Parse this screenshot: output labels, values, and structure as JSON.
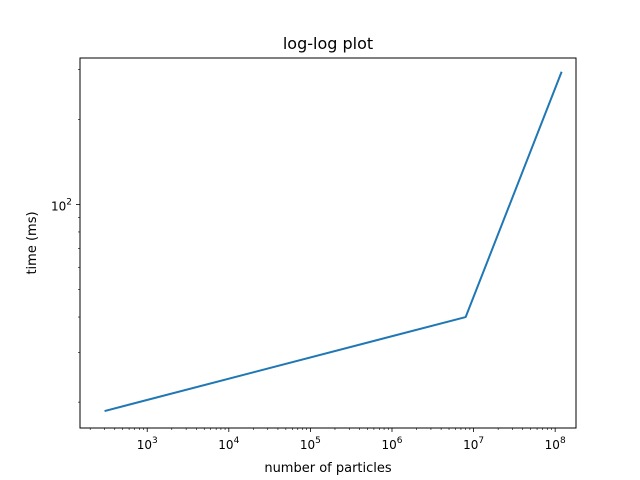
{
  "chart_data": {
    "type": "line",
    "title": "log-log plot",
    "xlabel": "number of particles",
    "ylabel": "time (ms)",
    "xscale": "log",
    "yscale": "log",
    "xlim": [
      150,
      180000000
    ],
    "ylim": [
      16.2,
      330
    ],
    "grid": false,
    "x_ticks": [
      {
        "base": "10",
        "exp": "3",
        "value": 1000
      },
      {
        "base": "10",
        "exp": "4",
        "value": 10000
      },
      {
        "base": "10",
        "exp": "5",
        "value": 100000
      },
      {
        "base": "10",
        "exp": "6",
        "value": 1000000
      },
      {
        "base": "10",
        "exp": "7",
        "value": 10000000
      },
      {
        "base": "10",
        "exp": "8",
        "value": 100000000
      }
    ],
    "y_ticks": [
      {
        "base": "10",
        "exp": "2",
        "value": 100
      }
    ],
    "series": [
      {
        "color": "#1f77b4",
        "x": [
          300,
          8000000,
          120000000
        ],
        "y": [
          18.6,
          40.0,
          295
        ]
      }
    ]
  }
}
